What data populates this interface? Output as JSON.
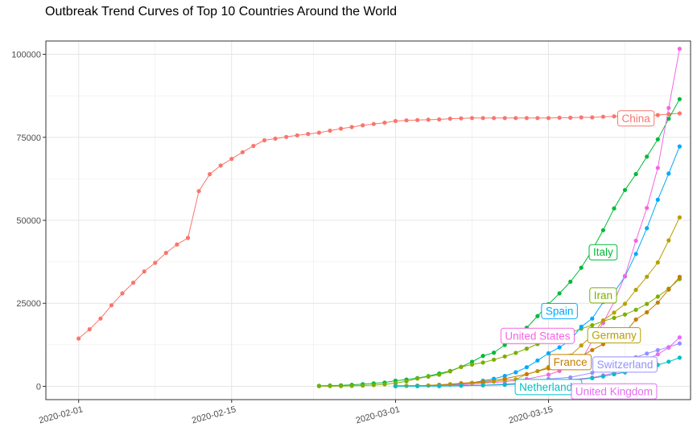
{
  "chart_data": {
    "type": "line",
    "title": "Outbreak Trend Curves of Top 10 Countries Around the World",
    "xlabel": "",
    "ylabel": "",
    "ylim": [
      -4000,
      104000
    ],
    "xlim": [
      "2020-01-29",
      "2020-03-28"
    ],
    "grid": true,
    "legend": "none (series labelled directly on the plot)",
    "y_ticks": [
      "0",
      "25000",
      "50000",
      "75000",
      "100000"
    ],
    "x_ticks": [
      "2020-02-01",
      "2020-02-15",
      "2020-03-01",
      "2020-03-15"
    ],
    "series": [
      {
        "name": "China",
        "color": "#F8766D",
        "x": [
          "2020-02-01",
          "2020-02-02",
          "2020-02-03",
          "2020-02-04",
          "2020-02-05",
          "2020-02-06",
          "2020-02-07",
          "2020-02-08",
          "2020-02-09",
          "2020-02-10",
          "2020-02-11",
          "2020-02-12",
          "2020-02-13",
          "2020-02-14",
          "2020-02-15",
          "2020-02-16",
          "2020-02-17",
          "2020-02-18",
          "2020-02-19",
          "2020-02-20",
          "2020-02-21",
          "2020-02-22",
          "2020-02-23",
          "2020-02-24",
          "2020-02-25",
          "2020-02-26",
          "2020-02-27",
          "2020-02-28",
          "2020-02-29",
          "2020-03-01",
          "2020-03-02",
          "2020-03-03",
          "2020-03-04",
          "2020-03-05",
          "2020-03-06",
          "2020-03-07",
          "2020-03-08",
          "2020-03-09",
          "2020-03-10",
          "2020-03-11",
          "2020-03-12",
          "2020-03-13",
          "2020-03-14",
          "2020-03-15",
          "2020-03-16",
          "2020-03-17",
          "2020-03-18",
          "2020-03-19",
          "2020-03-20",
          "2020-03-21",
          "2020-03-22",
          "2020-03-23",
          "2020-03-24",
          "2020-03-25",
          "2020-03-26",
          "2020-03-27"
        ],
        "values": [
          14400,
          17200,
          20400,
          24400,
          28000,
          31200,
          34600,
          37200,
          40200,
          42700,
          44700,
          58800,
          63900,
          66500,
          68500,
          70500,
          72400,
          74100,
          74600,
          75100,
          75600,
          76000,
          76400,
          77000,
          77600,
          78100,
          78600,
          79000,
          79400,
          79900,
          80100,
          80200,
          80300,
          80400,
          80600,
          80700,
          80800,
          80800,
          80800,
          80800,
          80800,
          80800,
          80800,
          80800,
          80900,
          80900,
          81000,
          81000,
          81200,
          81300,
          81400,
          81500,
          81600,
          81700,
          82000,
          82200
        ]
      },
      {
        "name": "Italy",
        "color": "#00BA38",
        "x": [
          "2020-02-23",
          "2020-02-24",
          "2020-02-25",
          "2020-02-26",
          "2020-02-27",
          "2020-02-28",
          "2020-02-29",
          "2020-03-01",
          "2020-03-02",
          "2020-03-03",
          "2020-03-04",
          "2020-03-05",
          "2020-03-06",
          "2020-03-07",
          "2020-03-08",
          "2020-03-09",
          "2020-03-10",
          "2020-03-11",
          "2020-03-12",
          "2020-03-13",
          "2020-03-14",
          "2020-03-15",
          "2020-03-16",
          "2020-03-17",
          "2020-03-18",
          "2020-03-19",
          "2020-03-20",
          "2020-03-21",
          "2020-03-22",
          "2020-03-23",
          "2020-03-24",
          "2020-03-25",
          "2020-03-26",
          "2020-03-27"
        ],
        "values": [
          150,
          230,
          320,
          450,
          650,
          890,
          1130,
          1690,
          2040,
          2500,
          3090,
          3860,
          4640,
          5880,
          7380,
          9170,
          10150,
          12460,
          15110,
          17660,
          21160,
          24750,
          27980,
          31500,
          35710,
          41040,
          47020,
          53580,
          59140,
          63930,
          69180,
          74390,
          80590,
          86500
        ]
      },
      {
        "name": "Iran",
        "color": "#7CAE00",
        "x": [
          "2020-02-23",
          "2020-02-24",
          "2020-02-25",
          "2020-02-26",
          "2020-02-27",
          "2020-02-28",
          "2020-02-29",
          "2020-03-01",
          "2020-03-02",
          "2020-03-03",
          "2020-03-04",
          "2020-03-05",
          "2020-03-06",
          "2020-03-07",
          "2020-03-08",
          "2020-03-09",
          "2020-03-10",
          "2020-03-11",
          "2020-03-12",
          "2020-03-13",
          "2020-03-14",
          "2020-03-15",
          "2020-03-16",
          "2020-03-17",
          "2020-03-18",
          "2020-03-19",
          "2020-03-20",
          "2020-03-21",
          "2020-03-22",
          "2020-03-23",
          "2020-03-24",
          "2020-03-25",
          "2020-03-26",
          "2020-03-27"
        ],
        "values": [
          40,
          60,
          100,
          140,
          240,
          390,
          590,
          980,
          1500,
          2340,
          2920,
          3510,
          4500,
          5820,
          6560,
          7160,
          8040,
          9000,
          10070,
          11360,
          12730,
          13940,
          14990,
          16170,
          17360,
          18410,
          19640,
          20610,
          21640,
          23050,
          24810,
          27020,
          29410,
          32330
        ]
      },
      {
        "name": "Spain",
        "color": "#00A9FF",
        "x": [
          "2020-03-01",
          "2020-03-02",
          "2020-03-03",
          "2020-03-04",
          "2020-03-05",
          "2020-03-06",
          "2020-03-07",
          "2020-03-08",
          "2020-03-09",
          "2020-03-10",
          "2020-03-11",
          "2020-03-12",
          "2020-03-13",
          "2020-03-14",
          "2020-03-15",
          "2020-03-16",
          "2020-03-17",
          "2020-03-18",
          "2020-03-19",
          "2020-03-20",
          "2020-03-21",
          "2020-03-22",
          "2020-03-23",
          "2020-03-24",
          "2020-03-25",
          "2020-03-26",
          "2020-03-27"
        ],
        "values": [
          80,
          120,
          170,
          230,
          370,
          500,
          670,
          1070,
          1690,
          2280,
          3150,
          4230,
          5760,
          7800,
          9940,
          11750,
          13910,
          17960,
          20410,
          25370,
          28310,
          33090,
          39880,
          47610,
          56190,
          64060,
          72250
        ]
      },
      {
        "name": "United States",
        "color": "#F564E3",
        "x": [
          "2020-03-01",
          "2020-03-03",
          "2020-03-05",
          "2020-03-07",
          "2020-03-09",
          "2020-03-11",
          "2020-03-13",
          "2020-03-15",
          "2020-03-16",
          "2020-03-17",
          "2020-03-18",
          "2020-03-19",
          "2020-03-20",
          "2020-03-21",
          "2020-03-22",
          "2020-03-23",
          "2020-03-24",
          "2020-03-25",
          "2020-03-26",
          "2020-03-27"
        ],
        "values": [
          70,
          120,
          220,
          420,
          960,
          1400,
          2180,
          3500,
          4630,
          6420,
          7780,
          13680,
          19100,
          25490,
          33270,
          43850,
          53740,
          65780,
          83840,
          101660
        ]
      },
      {
        "name": "Germany",
        "color": "#B79F00",
        "x": [
          "2020-03-01",
          "2020-03-02",
          "2020-03-03",
          "2020-03-04",
          "2020-03-05",
          "2020-03-06",
          "2020-03-07",
          "2020-03-08",
          "2020-03-09",
          "2020-03-10",
          "2020-03-11",
          "2020-03-12",
          "2020-03-13",
          "2020-03-14",
          "2020-03-15",
          "2020-03-16",
          "2020-03-17",
          "2020-03-18",
          "2020-03-19",
          "2020-03-20",
          "2020-03-21",
          "2020-03-22",
          "2020-03-23",
          "2020-03-24",
          "2020-03-25",
          "2020-03-26",
          "2020-03-27"
        ],
        "values": [
          130,
          160,
          200,
          260,
          480,
          670,
          800,
          1040,
          1180,
          1460,
          1910,
          2080,
          3680,
          4590,
          5800,
          7270,
          9260,
          12330,
          15320,
          19840,
          22210,
          24870,
          29060,
          32990,
          37320,
          43940,
          50870
        ]
      },
      {
        "name": "France",
        "color": "#C77C00",
        "x": [
          "2020-03-01",
          "2020-03-03",
          "2020-03-05",
          "2020-03-07",
          "2020-03-09",
          "2020-03-11",
          "2020-03-13",
          "2020-03-15",
          "2020-03-17",
          "2020-03-18",
          "2020-03-19",
          "2020-03-20",
          "2020-03-21",
          "2020-03-22",
          "2020-03-23",
          "2020-03-24",
          "2020-03-25",
          "2020-03-26",
          "2020-03-27"
        ],
        "values": [
          130,
          200,
          380,
          950,
          1410,
          2290,
          3660,
          5420,
          7700,
          9100,
          10950,
          12700,
          14460,
          16240,
          20120,
          22300,
          25230,
          29160,
          32960
        ]
      },
      {
        "name": "Switzerland",
        "color": "#9590FF",
        "x": [
          "2020-03-05",
          "2020-03-07",
          "2020-03-09",
          "2020-03-11",
          "2020-03-13",
          "2020-03-15",
          "2020-03-17",
          "2020-03-19",
          "2020-03-20",
          "2020-03-21",
          "2020-03-22",
          "2020-03-23",
          "2020-03-24",
          "2020-03-25",
          "2020-03-26",
          "2020-03-27"
        ],
        "values": [
          90,
          270,
          370,
          650,
          1140,
          2200,
          2700,
          4070,
          5290,
          6580,
          7470,
          8790,
          9880,
          10900,
          11810,
          12930
        ]
      },
      {
        "name": "United Kingdom",
        "color": "#E76BF3",
        "x": [
          "2020-03-05",
          "2020-03-07",
          "2020-03-09",
          "2020-03-11",
          "2020-03-13",
          "2020-03-15",
          "2020-03-17",
          "2020-03-19",
          "2020-03-20",
          "2020-03-21",
          "2020-03-22",
          "2020-03-23",
          "2020-03-24",
          "2020-03-25",
          "2020-03-26",
          "2020-03-27"
        ],
        "values": [
          120,
          210,
          320,
          460,
          800,
          1140,
          1950,
          2630,
          3290,
          4010,
          5070,
          6650,
          8080,
          9640,
          11660,
          14740
        ]
      },
      {
        "name": "Netherlands",
        "color": "#00BFC4",
        "x": [
          "2020-03-01",
          "2020-03-03",
          "2020-03-05",
          "2020-03-07",
          "2020-03-09",
          "2020-03-11",
          "2020-03-13",
          "2020-03-15",
          "2020-03-17",
          "2020-03-19",
          "2020-03-20",
          "2020-03-21",
          "2020-03-22",
          "2020-03-23",
          "2020-03-24",
          "2020-03-25",
          "2020-03-26",
          "2020-03-27"
        ],
        "values": [
          10,
          40,
          80,
          190,
          320,
          500,
          800,
          1140,
          1710,
          2460,
          2990,
          3640,
          4210,
          4760,
          5580,
          6440,
          7430,
          8620
        ]
      }
    ],
    "point_labels": [
      {
        "series": "China",
        "text": "China",
        "x": "2020-03-23",
        "y": 80800
      },
      {
        "series": "Italy",
        "text": "Italy",
        "x": "2020-03-20",
        "y": 40500
      },
      {
        "series": "Iran",
        "text": "Iran",
        "x": "2020-03-20",
        "y": 27500
      },
      {
        "series": "Spain",
        "text": "Spain",
        "x": "2020-03-16",
        "y": 22800
      },
      {
        "series": "United States",
        "text": "United States",
        "x": "2020-03-14",
        "y": 15300
      },
      {
        "series": "Germany",
        "text": "Germany",
        "x": "2020-03-21",
        "y": 15500
      },
      {
        "series": "France",
        "text": "France",
        "x": "2020-03-17",
        "y": 7400
      },
      {
        "series": "Switzerland",
        "text": "Switzerland",
        "x": "2020-03-22",
        "y": 6700
      },
      {
        "series": "Netherlands",
        "text": "Netherlands",
        "x": "2020-03-15",
        "y": -100
      },
      {
        "series": "United Kingdom",
        "text": "United Kingdom",
        "x": "2020-03-21",
        "y": -1400
      }
    ]
  }
}
